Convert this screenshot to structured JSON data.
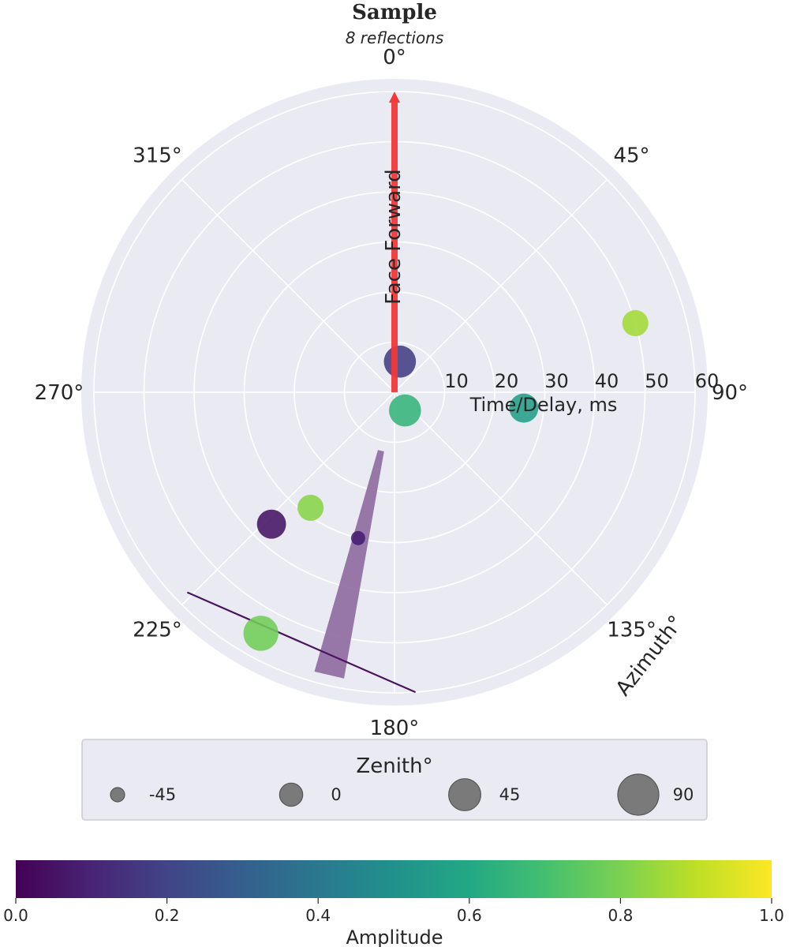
{
  "chart_data": {
    "type": "scatter",
    "coordinate_system": "polar",
    "title": "Sample",
    "subtitle": "8 reflections",
    "radial_axis": {
      "label": "Time/Delay, ms",
      "range": [
        0,
        60
      ],
      "ticks": [
        10,
        20,
        30,
        40,
        50,
        60
      ],
      "tick_labels": [
        "10",
        "20",
        "30",
        "40",
        "50",
        "60"
      ]
    },
    "angular_axis": {
      "label": "Azimuth°",
      "zero_location": "top",
      "direction": "clockwise",
      "ticks": [
        0,
        45,
        90,
        135,
        180,
        225,
        270,
        315
      ],
      "tick_labels": [
        "0°",
        "45°",
        "90°",
        "135°",
        "180°",
        "225°",
        "270°",
        "315°"
      ]
    },
    "grid": true,
    "forward_arrow": {
      "label": "Face Forward",
      "azimuth": 0,
      "length": 60,
      "color": "#f23838"
    },
    "points": [
      {
        "azimuth": 10,
        "delay": 6.2,
        "zenith": 45,
        "amplitude": 0.18
      },
      {
        "azimuth": 150,
        "delay": 4.2,
        "zenith": 45,
        "amplitude": 0.65
      },
      {
        "azimuth": 97,
        "delay": 26.0,
        "zenith": 30,
        "amplitude": 0.55
      },
      {
        "azimuth": 74,
        "delay": 50.0,
        "zenith": 15,
        "amplitude": 0.86
      },
      {
        "azimuth": 216,
        "delay": 28.5,
        "zenith": 15,
        "amplitude": 0.82
      },
      {
        "azimuth": 223,
        "delay": 36.0,
        "zenith": 30,
        "amplitude": 0.05
      },
      {
        "azimuth": 194,
        "delay": 30.0,
        "zenith": -45,
        "amplitude": 0.08
      },
      {
        "azimuth": 209,
        "delay": 55.0,
        "zenith": 60,
        "amplitude": 0.78
      }
    ],
    "wedge": {
      "azimuth_from": 190,
      "azimuth_to": 196,
      "delay_from": 12,
      "delay_to": 58,
      "color": "#8e6aa0"
    },
    "line": {
      "from": {
        "azimuth": 226,
        "delay": 57.5
      },
      "to": {
        "azimuth": 176,
        "delay": 60
      },
      "color": "#4b145e"
    },
    "size_legend": {
      "title": "Zenith°",
      "placement": "bottom",
      "entries": [
        {
          "label": "-45",
          "value": -45
        },
        {
          "label": "0",
          "value": 0
        },
        {
          "label": "45",
          "value": 45
        },
        {
          "label": "90",
          "value": 90
        }
      ]
    },
    "colorbar": {
      "label": "Amplitude",
      "range": [
        0,
        1
      ],
      "colormap": "viridis",
      "ticks": [
        0,
        0.2,
        0.4,
        0.6,
        0.8,
        1.0
      ],
      "tick_labels": [
        "0.0",
        "0.2",
        "0.4",
        "0.6",
        "0.8",
        "1.0"
      ]
    }
  }
}
